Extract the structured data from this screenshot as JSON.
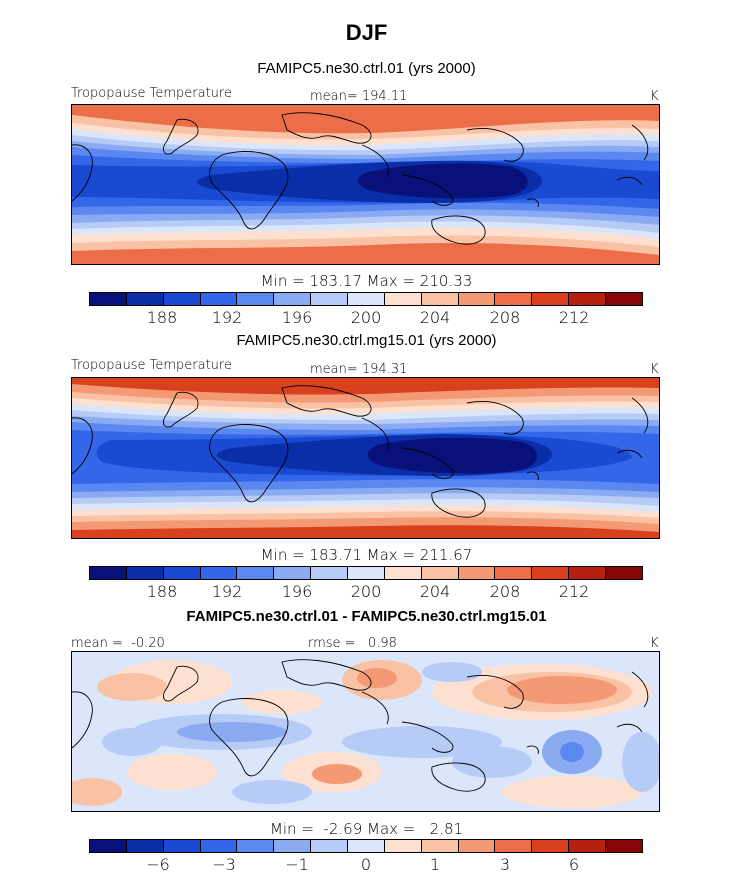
{
  "title": "DJF",
  "colors": [
    "#08107a",
    "#0a2ea8",
    "#1a4ad2",
    "#3366e8",
    "#5b88f0",
    "#8aaaf2",
    "#b6cbf6",
    "#dbe6fb",
    "#fde0cf",
    "#f9c2a5",
    "#f39a75",
    "#ec6e48",
    "#d8401e",
    "#b5200f",
    "#860505"
  ],
  "panel1": {
    "title": "FAMIPC5.ne30.ctrl.01 (yrs 2000)",
    "var_label": "Tropopause Temperature",
    "mean": "mean= 194.11",
    "units": "K",
    "minmax": "Min = 183.17 Max = 210.33"
  },
  "panel2": {
    "title": "FAMIPC5.ne30.ctrl.mg15.01 (yrs 2000)",
    "var_label": "Tropopause Temperature",
    "mean": "mean= 194.31",
    "units": "K",
    "minmax": "Min = 183.71 Max = 211.67"
  },
  "panel3": {
    "title": "FAMIPC5.ne30.ctrl.01 - FAMIPC5.ne30.ctrl.mg15.01",
    "mean": "mean =  -0.20",
    "rmse": "rmse =   0.98",
    "units": "K",
    "minmax": "Min =  -2.69 Max =   2.81"
  },
  "colorbar_ticks_abs": [
    "188",
    "192",
    "196",
    "200",
    "204",
    "208",
    "212"
  ],
  "colorbar_ticks_diff": [
    "−6",
    "−3",
    "−1",
    "0",
    "1",
    "3",
    "6"
  ]
}
